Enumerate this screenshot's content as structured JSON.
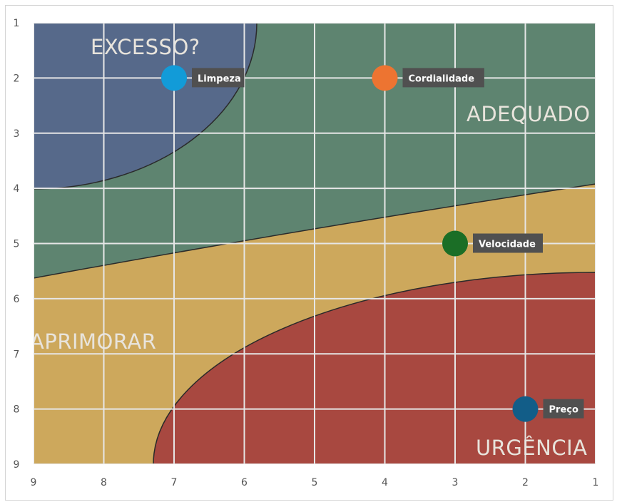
{
  "chart_data": {
    "type": "scatter",
    "title": "",
    "xlabel": "",
    "ylabel": "",
    "xlim": [
      9,
      1
    ],
    "ylim": [
      1,
      9
    ],
    "x_reversed": true,
    "y_reversed": true,
    "grid": true,
    "x_ticks": [
      "9",
      "8",
      "7",
      "6",
      "5",
      "4",
      "3",
      "2",
      "1"
    ],
    "y_ticks": [
      "1",
      "2",
      "3",
      "4",
      "5",
      "6",
      "7",
      "8",
      "9"
    ],
    "zones": [
      {
        "name": "EXCESSO?",
        "color": "#56698a"
      },
      {
        "name": "ADEQUADO",
        "color": "#5e8470"
      },
      {
        "name": "APRIMORAR",
        "color": "#cda85c"
      },
      {
        "name": "URGÊNCIA",
        "color": "#a84840"
      }
    ],
    "points": [
      {
        "label": "Limpeza",
        "x": 7,
        "y": 2,
        "color": "#129bd8"
      },
      {
        "label": "Cordialidade",
        "x": 4,
        "y": 2,
        "color": "#ed7431"
      },
      {
        "label": "Velocidade",
        "x": 3,
        "y": 5,
        "color": "#1b6e26"
      },
      {
        "label": "Preço",
        "x": 2,
        "y": 8,
        "color": "#125d88"
      }
    ]
  }
}
